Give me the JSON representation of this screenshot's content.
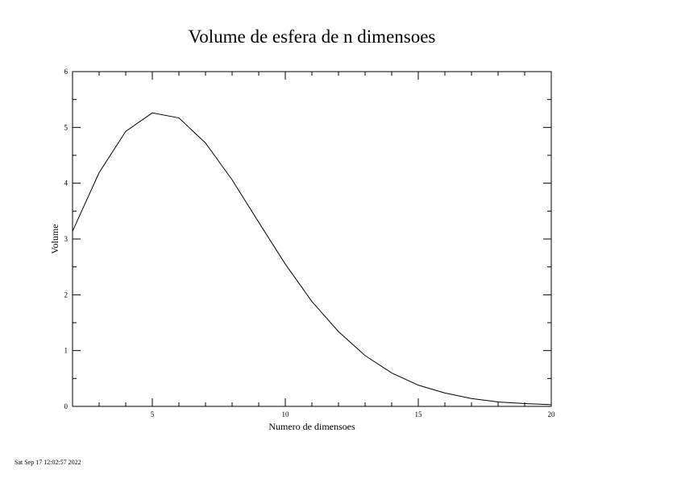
{
  "chart_data": {
    "type": "line",
    "title": "Volume de esfera de n dimensoes",
    "xlabel": "Numero de dimensoes",
    "ylabel": "Volume",
    "xlim": [
      2,
      20
    ],
    "ylim": [
      0,
      6
    ],
    "x_ticks": [
      5,
      10,
      15,
      20
    ],
    "y_ticks": [
      0,
      1,
      2,
      3,
      4,
      5,
      6
    ],
    "x_minor_step": 1,
    "y_minor_step": 0.5,
    "grid": false,
    "series": [
      {
        "x": [
          2,
          3,
          4,
          5,
          6,
          7,
          8,
          9,
          10,
          11,
          12,
          13,
          14,
          15,
          16,
          17,
          18,
          19,
          20
        ],
        "values": [
          3.14,
          4.19,
          4.93,
          5.26,
          5.17,
          4.72,
          4.06,
          3.3,
          2.55,
          1.88,
          1.34,
          0.91,
          0.6,
          0.38,
          0.24,
          0.14,
          0.08,
          0.05,
          0.03
        ],
        "color": "#000000"
      }
    ]
  },
  "footer": {
    "timestamp": "Sat Sep 17 12:02:57 2022"
  }
}
